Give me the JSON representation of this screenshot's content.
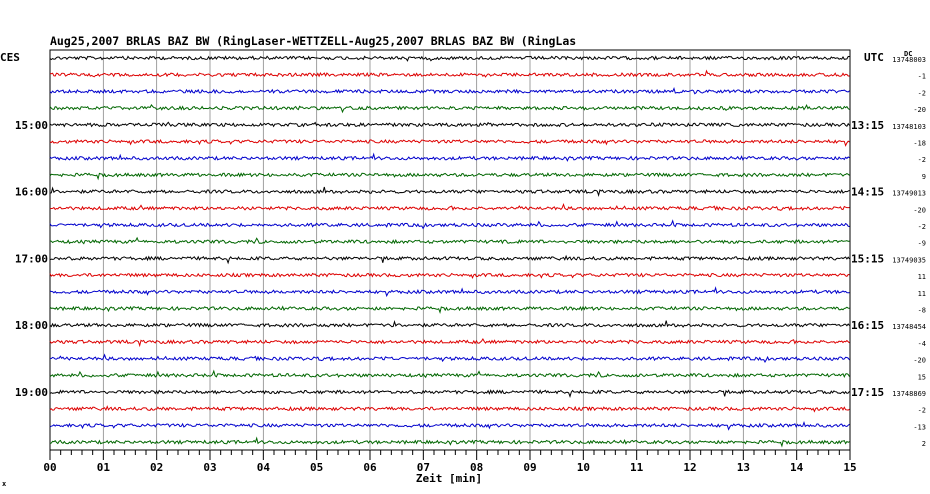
{
  "chart_data": {
    "type": "line",
    "title": "Aug25,2007   BRLAS BAZ BW (RingLaser-WETTZELL-Aug25,2007   BRLAS BAZ BW (RingLas",
    "left_timezone_label": "CES",
    "right_timezone_label": "UTC",
    "xlabel": "Zeit [min]",
    "xlim": [
      0,
      15
    ],
    "x_ticks": [
      "00",
      "01",
      "02",
      "03",
      "04",
      "05",
      "06",
      "07",
      "08",
      "09",
      "10",
      "11",
      "12",
      "13",
      "14",
      "15"
    ],
    "line_colors": [
      "#000000",
      "#dd0000",
      "#0000cc",
      "#006600"
    ],
    "rows_per_hour": 4,
    "hour_labels_left": [
      "15:00",
      "16:00",
      "17:00",
      "18:00",
      "19:00"
    ],
    "hour_labels_right": [
      "13:15",
      "14:15",
      "15:15",
      "16:15",
      "17:15"
    ],
    "right_header_small": "DC",
    "right_values": [
      "13748003",
      "-1",
      "-2",
      "-20",
      "13748103",
      "-18",
      "-2",
      "9",
      "13749013",
      "-20",
      "-2",
      "-9",
      "13749035",
      "11",
      "11",
      "-8",
      "13748454",
      "-4",
      "-20",
      "15",
      "13748869",
      "-2",
      "-13",
      "2"
    ],
    "grid": true,
    "corner_mark": "x"
  }
}
